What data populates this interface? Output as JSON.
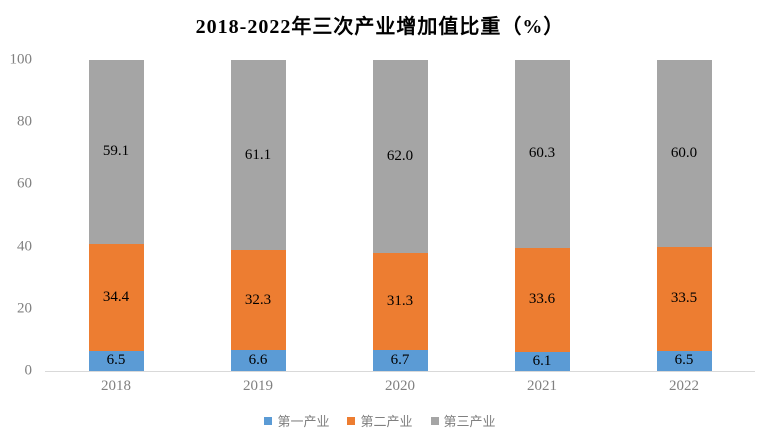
{
  "title": "2018-2022年三次产业增加值比重（%）",
  "colors": {
    "primary_industry": "#5B9BD5",
    "secondary_industry": "#ED7D31",
    "tertiary_industry": "#A5A5A5",
    "axis_text": "#808080",
    "axis_line": "#D9D9D9",
    "data_label_text": "#000000",
    "background": "#FFFFFF"
  },
  "chart_data": {
    "type": "bar",
    "stacked": true,
    "title": "2018-2022年三次产业增加值比重（%）",
    "categories": [
      "2018",
      "2019",
      "2020",
      "2021",
      "2022"
    ],
    "series": [
      {
        "name": "第一产业",
        "color": "#5B9BD5",
        "values": [
          6.5,
          6.6,
          6.7,
          6.1,
          6.5
        ],
        "labels": [
          "6.5",
          "6.6",
          "6.7",
          "6.1",
          "6.5"
        ]
      },
      {
        "name": "第二产业",
        "color": "#ED7D31",
        "values": [
          34.4,
          32.3,
          31.3,
          33.6,
          33.5
        ],
        "labels": [
          "34.4",
          "32.3",
          "31.3",
          "33.6",
          "33.5"
        ]
      },
      {
        "name": "第三产业",
        "color": "#A5A5A5",
        "values": [
          59.1,
          61.1,
          62.0,
          60.3,
          60.0
        ],
        "labels": [
          "59.1",
          "61.1",
          "62.0",
          "60.3",
          "60.0"
        ]
      }
    ],
    "xlabel": "",
    "ylabel": "",
    "ylim": [
      0,
      100
    ],
    "yticks": [
      0,
      20,
      40,
      60,
      80,
      100
    ],
    "grid": false,
    "legend_position": "bottom"
  }
}
